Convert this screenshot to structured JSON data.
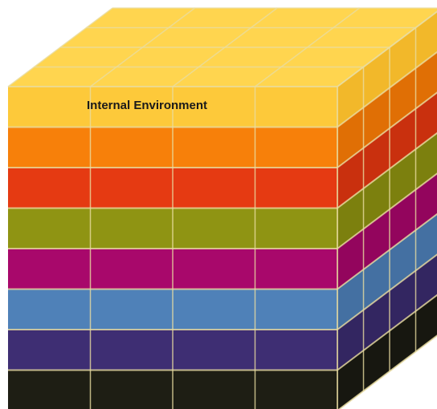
{
  "label": "Internal Environment",
  "layers": [
    {
      "name": "yellow",
      "front": "#FDC93A",
      "side": "#F2B82A",
      "top": "#FFD54F"
    },
    {
      "name": "orange",
      "front": "#F7800A",
      "side": "#E06F05"
    },
    {
      "name": "red",
      "front": "#E53A12",
      "side": "#C9300E"
    },
    {
      "name": "olive",
      "front": "#8F9413",
      "side": "#7C800E"
    },
    {
      "name": "magenta",
      "front": "#A8086B",
      "side": "#93055D"
    },
    {
      "name": "steel-blue",
      "front": "#4F81B8",
      "side": "#4470A2"
    },
    {
      "name": "indigo",
      "front": "#3E2E73",
      "side": "#332661"
    },
    {
      "name": "black",
      "front": "#1E1E14",
      "side": "#171710"
    }
  ],
  "grid": {
    "columns": 4,
    "depth": 4
  },
  "colors": {
    "grid_line": "#E8DCA0"
  }
}
